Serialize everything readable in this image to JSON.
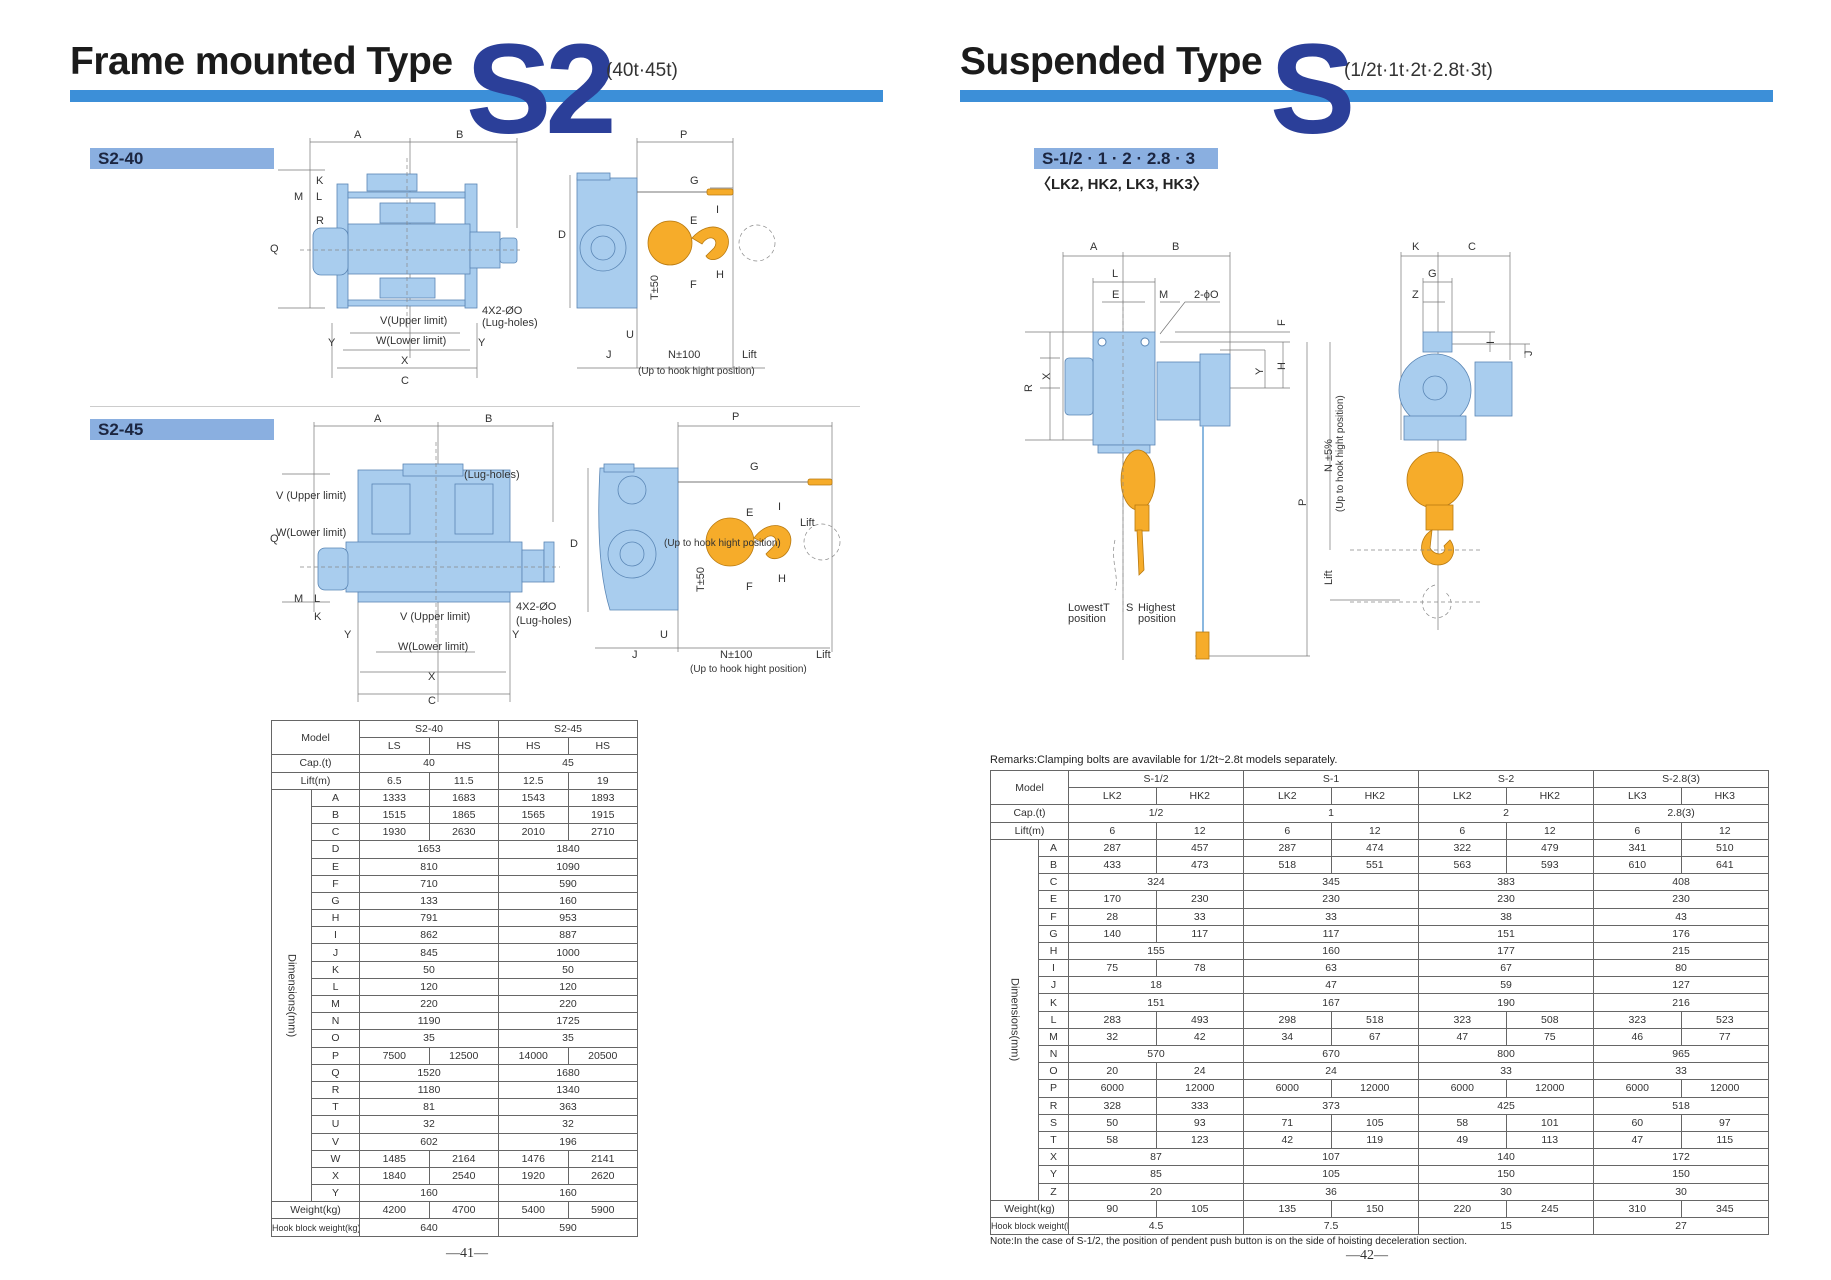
{
  "left_page": {
    "title": "Frame mounted Type",
    "model_big": "S2",
    "capacities": "(40t·45t)",
    "section1_label": "S2-40",
    "section2_label": "S2-45",
    "diagram1": {
      "A": "A",
      "B": "B",
      "P": "P",
      "Q": "Q",
      "M": "M",
      "L": "L",
      "K": "K",
      "R": "R",
      "V": "V(Upper limit)",
      "W": "W(Lower limit)",
      "lug1": "4X2-ØO",
      "lug2": "(Lug-holes)",
      "Y": "Y",
      "X": "X",
      "C": "C",
      "D": "D",
      "G": "G",
      "E": "E",
      "I": "I",
      "F": "F",
      "H": "H",
      "T": "T±50",
      "U": "U",
      "J": "J",
      "N": "N±100",
      "Lift": "Lift",
      "uphook": "(Up to hook hight position)"
    },
    "diagram2": {
      "A": "A",
      "B": "B",
      "P": "P",
      "Q": "Q",
      "M": "M",
      "L": "L",
      "K": "K",
      "lugtop": "(Lug-holes)",
      "Vleft": "V (Upper limit)",
      "Wleft": "W(Lower limit)",
      "V": "V (Upper limit)",
      "W": "W(Lower limit)",
      "lug1": "4X2-ØO",
      "lug2": "(Lug-holes)",
      "Y": "Y",
      "X": "X",
      "C": "C",
      "D": "D",
      "G": "G",
      "E": "E",
      "I": "I",
      "F": "F",
      "H": "H",
      "T": "T±50",
      "U": "U",
      "J": "J",
      "N": "N±100",
      "Lift": "Lift",
      "Lift2": "Lift",
      "uphook_mid": "(Up to hook hight position)",
      "uphook": "(Up to hook hight position)"
    },
    "table": {
      "model_label": "Model",
      "groups": [
        {
          "name": "S2-40",
          "subs": [
            "LS",
            "HS"
          ]
        },
        {
          "name": "S2-45",
          "subs": [
            "HS",
            "HS"
          ]
        }
      ],
      "cap": {
        "label": "Cap.(t)",
        "values": [
          [
            "40"
          ],
          [
            "45"
          ]
        ]
      },
      "lift": {
        "label": "Lift(m)",
        "values": [
          [
            "6.5",
            "11.5"
          ],
          [
            "12.5",
            "19"
          ]
        ]
      },
      "dims_label": "Dimensions(mm)",
      "dims": [
        {
          "k": "A",
          "v": [
            [
              "1333",
              "1683"
            ],
            [
              "1543",
              "1893"
            ]
          ]
        },
        {
          "k": "B",
          "v": [
            [
              "1515",
              "1865"
            ],
            [
              "1565",
              "1915"
            ]
          ]
        },
        {
          "k": "C",
          "v": [
            [
              "1930",
              "2630"
            ],
            [
              "2010",
              "2710"
            ]
          ]
        },
        {
          "k": "D",
          "v": [
            [
              "1653"
            ],
            [
              "1840"
            ]
          ]
        },
        {
          "k": "E",
          "v": [
            [
              "810"
            ],
            [
              "1090"
            ]
          ]
        },
        {
          "k": "F",
          "v": [
            [
              "710"
            ],
            [
              "590"
            ]
          ]
        },
        {
          "k": "G",
          "v": [
            [
              "133"
            ],
            [
              "160"
            ]
          ]
        },
        {
          "k": "H",
          "v": [
            [
              "791"
            ],
            [
              "953"
            ]
          ]
        },
        {
          "k": "I",
          "v": [
            [
              "862"
            ],
            [
              "887"
            ]
          ]
        },
        {
          "k": "J",
          "v": [
            [
              "845"
            ],
            [
              "1000"
            ]
          ]
        },
        {
          "k": "K",
          "v": [
            [
              "50"
            ],
            [
              "50"
            ]
          ]
        },
        {
          "k": "L",
          "v": [
            [
              "120"
            ],
            [
              "120"
            ]
          ]
        },
        {
          "k": "M",
          "v": [
            [
              "220"
            ],
            [
              "220"
            ]
          ]
        },
        {
          "k": "N",
          "v": [
            [
              "1190"
            ],
            [
              "1725"
            ]
          ]
        },
        {
          "k": "O",
          "v": [
            [
              "35"
            ],
            [
              "35"
            ]
          ]
        },
        {
          "k": "P",
          "v": [
            [
              "7500",
              "12500"
            ],
            [
              "14000",
              "20500"
            ]
          ]
        },
        {
          "k": "Q",
          "v": [
            [
              "1520"
            ],
            [
              "1680"
            ]
          ]
        },
        {
          "k": "R",
          "v": [
            [
              "1180"
            ],
            [
              "1340"
            ]
          ]
        },
        {
          "k": "T",
          "v": [
            [
              "81"
            ],
            [
              "363"
            ]
          ]
        },
        {
          "k": "U",
          "v": [
            [
              "32"
            ],
            [
              "32"
            ]
          ]
        },
        {
          "k": "V",
          "v": [
            [
              "602"
            ],
            [
              "196"
            ]
          ]
        },
        {
          "k": "W",
          "v": [
            [
              "1485",
              "2164"
            ],
            [
              "1476",
              "2141"
            ]
          ]
        },
        {
          "k": "X",
          "v": [
            [
              "1840",
              "2540"
            ],
            [
              "1920",
              "2620"
            ]
          ]
        },
        {
          "k": "Y",
          "v": [
            [
              "160"
            ],
            [
              "160"
            ]
          ]
        }
      ],
      "weight": {
        "label": "Weight(kg)",
        "values": [
          [
            "4200",
            "4700"
          ],
          [
            "5400",
            "5900"
          ]
        ]
      },
      "hook": {
        "label": "Hook block weight(kg)",
        "values": [
          [
            "640"
          ],
          [
            "590"
          ]
        ]
      }
    },
    "page_number": "—41—"
  },
  "right_page": {
    "title": "Suspended Type",
    "model_big": "S",
    "capacities": "(1/2t·1t·2t·2.8t·3t)",
    "section_label": "S-1/2 · 1 · 2 · 2.8 · 3",
    "section_sub": "〈LK2, HK2, LK3, HK3〉",
    "diagram": {
      "A": "A",
      "B": "B",
      "L": "L",
      "E": "E",
      "M": "M",
      "hole": "2-ϕO",
      "F": "F",
      "H": "H",
      "Y": "Y",
      "X": "X",
      "R": "R",
      "P": "P",
      "N": "N ±5%",
      "uphook": "(Up to hook hight position)",
      "Lift": "Lift",
      "lowest1": "Lowest",
      "lowest2": "position",
      "T": "T",
      "S": "S",
      "highest1": "Highest",
      "highest2": "position",
      "K": "K",
      "C": "C",
      "G": "G",
      "Z": "Z",
      "I": "I",
      "J": "J"
    },
    "remarks": "Remarks:Clamping bolts are avavilable for 1/2t~2.8t models separately.",
    "table": {
      "model_label": "Model",
      "groups": [
        {
          "name": "S-1/2",
          "subs": [
            "LK2",
            "HK2"
          ]
        },
        {
          "name": "S-1",
          "subs": [
            "LK2",
            "HK2"
          ]
        },
        {
          "name": "S-2",
          "subs": [
            "LK2",
            "HK2"
          ]
        },
        {
          "name": "S-2.8(3)",
          "subs": [
            "LK3",
            "HK3"
          ]
        }
      ],
      "cap": {
        "label": "Cap.(t)",
        "values": [
          [
            "1/2"
          ],
          [
            "1"
          ],
          [
            "2"
          ],
          [
            "2.8(3)"
          ]
        ]
      },
      "lift": {
        "label": "Lift(m)",
        "values": [
          [
            "6",
            "12"
          ],
          [
            "6",
            "12"
          ],
          [
            "6",
            "12"
          ],
          [
            "6",
            "12"
          ]
        ]
      },
      "dims_label": "Dimensions(mm)",
      "dims": [
        {
          "k": "A",
          "v": [
            [
              "287",
              "457"
            ],
            [
              "287",
              "474"
            ],
            [
              "322",
              "479"
            ],
            [
              "341",
              "510"
            ]
          ]
        },
        {
          "k": "B",
          "v": [
            [
              "433",
              "473"
            ],
            [
              "518",
              "551"
            ],
            [
              "563",
              "593"
            ],
            [
              "610",
              "641"
            ]
          ]
        },
        {
          "k": "C",
          "v": [
            [
              "324"
            ],
            [
              "345"
            ],
            [
              "383"
            ],
            [
              "408"
            ]
          ]
        },
        {
          "k": "E",
          "v": [
            [
              "170",
              "230"
            ],
            [
              "230"
            ],
            [
              "230"
            ],
            [
              "230"
            ]
          ]
        },
        {
          "k": "F",
          "v": [
            [
              "28",
              "33"
            ],
            [
              "33"
            ],
            [
              "38"
            ],
            [
              "43"
            ]
          ]
        },
        {
          "k": "G",
          "v": [
            [
              "140",
              "117"
            ],
            [
              "117"
            ],
            [
              "151"
            ],
            [
              "176"
            ]
          ]
        },
        {
          "k": "H",
          "v": [
            [
              "155"
            ],
            [
              "160"
            ],
            [
              "177"
            ],
            [
              "215"
            ]
          ]
        },
        {
          "k": "I",
          "v": [
            [
              "75",
              "78"
            ],
            [
              "63"
            ],
            [
              "67"
            ],
            [
              "80"
            ]
          ]
        },
        {
          "k": "J",
          "v": [
            [
              "18"
            ],
            [
              "47"
            ],
            [
              "59"
            ],
            [
              "127"
            ]
          ]
        },
        {
          "k": "K",
          "v": [
            [
              "151"
            ],
            [
              "167"
            ],
            [
              "190"
            ],
            [
              "216"
            ]
          ]
        },
        {
          "k": "L",
          "v": [
            [
              "283",
              "493"
            ],
            [
              "298",
              "518"
            ],
            [
              "323",
              "508"
            ],
            [
              "323",
              "523"
            ]
          ]
        },
        {
          "k": "M",
          "v": [
            [
              "32",
              "42"
            ],
            [
              "34",
              "67"
            ],
            [
              "47",
              "75"
            ],
            [
              "46",
              "77"
            ]
          ]
        },
        {
          "k": "N",
          "v": [
            [
              "570"
            ],
            [
              "670"
            ],
            [
              "800"
            ],
            [
              "965"
            ]
          ]
        },
        {
          "k": "O",
          "v": [
            [
              "20",
              "24"
            ],
            [
              "24"
            ],
            [
              "33"
            ],
            [
              "33"
            ]
          ]
        },
        {
          "k": "P",
          "v": [
            [
              "6000",
              "12000"
            ],
            [
              "6000",
              "12000"
            ],
            [
              "6000",
              "12000"
            ],
            [
              "6000",
              "12000"
            ]
          ]
        },
        {
          "k": "R",
          "v": [
            [
              "328",
              "333"
            ],
            [
              "373"
            ],
            [
              "425"
            ],
            [
              "518"
            ]
          ]
        },
        {
          "k": "S",
          "v": [
            [
              "50",
              "93"
            ],
            [
              "71",
              "105"
            ],
            [
              "58",
              "101"
            ],
            [
              "60",
              "97"
            ]
          ]
        },
        {
          "k": "T",
          "v": [
            [
              "58",
              "123"
            ],
            [
              "42",
              "119"
            ],
            [
              "49",
              "113"
            ],
            [
              "47",
              "115"
            ]
          ]
        },
        {
          "k": "X",
          "v": [
            [
              "87"
            ],
            [
              "107"
            ],
            [
              "140"
            ],
            [
              "172"
            ]
          ]
        },
        {
          "k": "Y",
          "v": [
            [
              "85"
            ],
            [
              "105"
            ],
            [
              "150"
            ],
            [
              "150"
            ]
          ]
        },
        {
          "k": "Z",
          "v": [
            [
              "20"
            ],
            [
              "36"
            ],
            [
              "30"
            ],
            [
              "30"
            ]
          ]
        }
      ],
      "weight": {
        "label": "Weight(kg)",
        "values": [
          [
            "90",
            "105"
          ],
          [
            "135",
            "150"
          ],
          [
            "220",
            "245"
          ],
          [
            "310",
            "345"
          ]
        ]
      },
      "hook": {
        "label": "Hook block weight(kg)",
        "values": [
          [
            "4.5"
          ],
          [
            "7.5"
          ],
          [
            "15"
          ],
          [
            "27"
          ]
        ]
      }
    },
    "note": "Note:In the case of S-1/2, the position of pendent push button is on the side of hoisting deceleration section.",
    "page_number": "—42—"
  },
  "colors": {
    "accent_bar": "#3c8fd8",
    "model_letters": "#2b3f99",
    "label_bg": "#8aafe0",
    "machine": "#a9cdee",
    "hook": "#f6ac2a"
  }
}
